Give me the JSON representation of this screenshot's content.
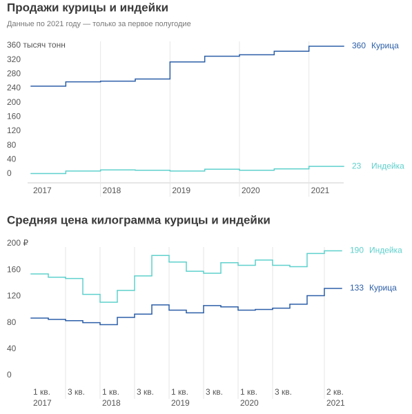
{
  "chart_data": [
    {
      "type": "step",
      "title": "Продажи курицы и индейки",
      "subtitle": "Данные по 2021 году — только за первое полугодие",
      "categories": [
        "2017",
        null,
        "2018",
        null,
        "2019",
        null,
        "2020",
        null,
        "2021"
      ],
      "series": [
        {
          "name": "Курица",
          "color": "#2b5ea7",
          "values": [
            248,
            260,
            262,
            268,
            316,
            332,
            336,
            346,
            360
          ]
        },
        {
          "name": "Индейка",
          "color": "#5ed0cc",
          "values": [
            3,
            10,
            13,
            12,
            10,
            15,
            12,
            16,
            23
          ]
        }
      ],
      "ylim": [
        0,
        360
      ],
      "yticks": [
        0,
        40,
        80,
        120,
        160,
        200,
        240,
        280,
        320,
        {
          "value": 360,
          "label": "360 тысяч тонн"
        }
      ],
      "grid": true
    },
    {
      "type": "step",
      "title": "Средняя цена килограмма курицы и индейки",
      "categories": [
        "1 кв.",
        null,
        "3 кв.",
        null,
        "1 кв.",
        null,
        "3 кв.",
        null,
        "1 кв.",
        null,
        "3 кв.",
        null,
        "1 кв.",
        null,
        "3 кв.",
        null,
        null,
        "2 кв."
      ],
      "years": [
        "2017",
        null,
        null,
        null,
        "2018",
        null,
        null,
        null,
        "2019",
        null,
        null,
        null,
        "2020",
        null,
        null,
        null,
        null,
        "2021"
      ],
      "series": [
        {
          "name": "Индейка",
          "color": "#5ed0cc",
          "values": [
            155,
            150,
            148,
            124,
            112,
            130,
            152,
            183,
            173,
            159,
            156,
            172,
            168,
            176,
            168,
            166,
            186,
            190
          ]
        },
        {
          "name": "Курица",
          "color": "#2b5ea7",
          "values": [
            88,
            86,
            84,
            81,
            78,
            89,
            94,
            108,
            100,
            96,
            107,
            105,
            100,
            101,
            103,
            109,
            122,
            133
          ]
        }
      ],
      "ylim": [
        0,
        200
      ],
      "yticks": [
        0,
        40,
        80,
        120,
        160,
        {
          "value": 200,
          "label": "200 ₽"
        }
      ],
      "grid": true
    }
  ]
}
